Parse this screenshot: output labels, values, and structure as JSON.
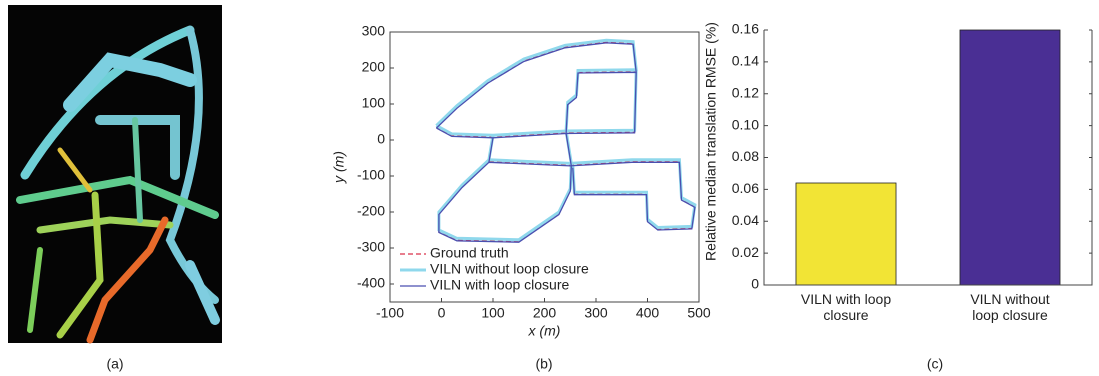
{
  "chart_data": [
    {
      "type": "image",
      "caption": "(a)"
    },
    {
      "type": "line",
      "caption": "(b)",
      "xlabel": "x (m)",
      "ylabel": "y (m)",
      "xlim": [
        -100,
        500
      ],
      "xticks": [
        -100,
        0,
        100,
        200,
        300,
        400,
        500
      ],
      "ylim": [
        -450,
        300
      ],
      "yticks": [
        300,
        200,
        100,
        0,
        -100,
        -200,
        -300,
        -400
      ],
      "legend": "lower left",
      "x": [
        -10,
        30,
        90,
        160,
        240,
        320,
        372,
        378,
        265,
        262,
        245,
        242,
        375,
        378,
        null,
        242,
        100,
        20,
        -10,
        null,
        100,
        92,
        40,
        -5,
        -5,
        30,
        150,
        228,
        250,
        252,
        242,
        null,
        92,
        250,
        370,
        462,
        466,
        492,
        486,
        420,
        400,
        398,
        258,
        255
      ],
      "series": [
        {
          "name": "Ground truth",
          "color": "#d9304a",
          "dash": true,
          "values": [
            35,
            90,
            160,
            220,
            258,
            272,
            268,
            190,
            188,
            120,
            100,
            20,
            22,
            190,
            null,
            20,
            8,
            12,
            35,
            null,
            8,
            -60,
            -130,
            -205,
            -255,
            -278,
            -282,
            -205,
            -140,
            -70,
            20,
            null,
            -60,
            -70,
            -60,
            -60,
            -165,
            -185,
            -245,
            -248,
            -225,
            -150,
            -150,
            -75
          ]
        },
        {
          "name": "VILN without loop closure",
          "color": "#8fd8ec",
          "dash": false,
          "values": [
            40,
            95,
            165,
            225,
            263,
            277,
            273,
            195,
            193,
            125,
            105,
            25,
            27,
            195,
            null,
            25,
            13,
            17,
            40,
            null,
            13,
            -55,
            -125,
            -200,
            -250,
            -273,
            -277,
            -200,
            -135,
            -65,
            25,
            null,
            -55,
            -65,
            -55,
            -55,
            -160,
            -180,
            -240,
            -243,
            -220,
            -145,
            -145,
            -70
          ]
        },
        {
          "name": "VILN with loop closure",
          "color": "#4a4fb0",
          "dash": false,
          "values": [
            33,
            88,
            158,
            218,
            256,
            270,
            266,
            188,
            186,
            118,
            98,
            18,
            20,
            188,
            null,
            18,
            6,
            10,
            33,
            null,
            6,
            -62,
            -132,
            -207,
            -257,
            -280,
            -284,
            -207,
            -142,
            -72,
            18,
            null,
            -62,
            -72,
            -62,
            -62,
            -167,
            -187,
            -247,
            -250,
            -227,
            -152,
            -152,
            -77
          ]
        }
      ]
    },
    {
      "type": "bar",
      "caption": "(c)",
      "ylabel": "Relative median translation RMSE (%)",
      "categories": [
        "VILN with loop closure",
        "VILN without loop closure"
      ],
      "values": [
        0.064,
        0.16
      ],
      "colors": [
        "#f2e435",
        "#4a2f94"
      ],
      "ylim": [
        0,
        0.16
      ],
      "yticks": [
        0,
        0.02,
        0.04,
        0.06,
        0.08,
        {
          "value": 0.1,
          "label": "0.10"
        },
        0.12,
        0.14,
        0.16
      ]
    }
  ]
}
